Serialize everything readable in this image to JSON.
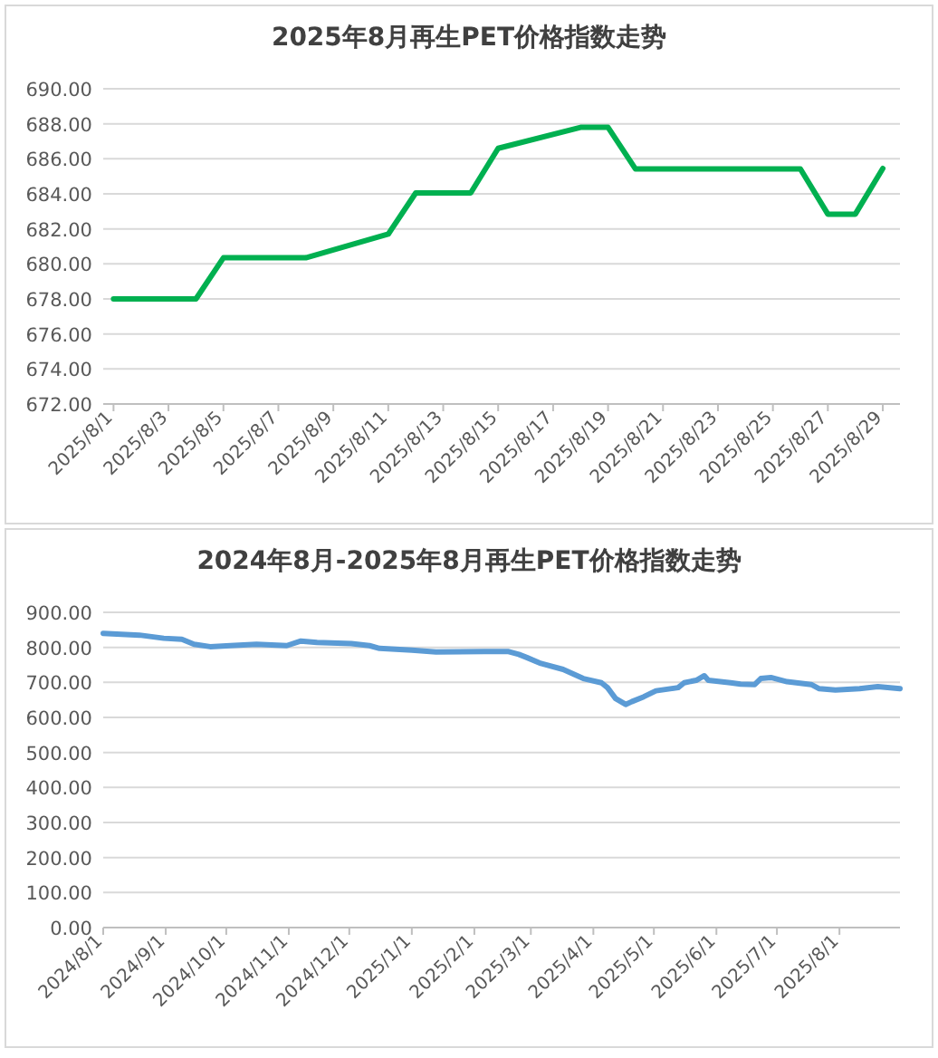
{
  "chart_data": [
    {
      "type": "line",
      "title": "2025年8月再生PET价格指数走势",
      "grid": "y",
      "line_style": "solid",
      "x": [
        "2025-08-01",
        "2025-08-04",
        "2025-08-05",
        "2025-08-06",
        "2025-08-07",
        "2025-08-08",
        "2025-08-11",
        "2025-08-12",
        "2025-08-13",
        "2025-08-14",
        "2025-08-15",
        "2025-08-18",
        "2025-08-19",
        "2025-08-20",
        "2025-08-21",
        "2025-08-22",
        "2025-08-25",
        "2025-08-26",
        "2025-08-27",
        "2025-08-28",
        "2025-08-29"
      ],
      "series": [
        {
          "color": "#00b050",
          "values": [
            678.0,
            678.0,
            680.35,
            680.35,
            680.35,
            680.35,
            681.7,
            684.05,
            684.05,
            684.05,
            686.6,
            687.8,
            687.8,
            685.42,
            685.42,
            685.42,
            685.42,
            685.42,
            682.84,
            682.84,
            685.45
          ]
        }
      ],
      "xlim": [
        "2025-07-31T15:00",
        "2025-08-29T15:00"
      ],
      "xticks": [
        {
          "value": "2025-08-01",
          "label": "2025/8/1"
        },
        {
          "value": "2025-08-03",
          "label": "2025/8/3"
        },
        {
          "value": "2025-08-05",
          "label": "2025/8/5"
        },
        {
          "value": "2025-08-07",
          "label": "2025/8/7"
        },
        {
          "value": "2025-08-09",
          "label": "2025/8/9"
        },
        {
          "value": "2025-08-11",
          "label": "2025/8/11"
        },
        {
          "value": "2025-08-13",
          "label": "2025/8/13"
        },
        {
          "value": "2025-08-15",
          "label": "2025/8/15"
        },
        {
          "value": "2025-08-17",
          "label": "2025/8/17"
        },
        {
          "value": "2025-08-19",
          "label": "2025/8/19"
        },
        {
          "value": "2025-08-21",
          "label": "2025/8/21"
        },
        {
          "value": "2025-08-23",
          "label": "2025/8/23"
        },
        {
          "value": "2025-08-25",
          "label": "2025/8/25"
        },
        {
          "value": "2025-08-27",
          "label": "2025/8/27"
        },
        {
          "value": "2025-08-29",
          "label": "2025/8/29"
        }
      ],
      "ylim": [
        672,
        690
      ],
      "yticks": [
        {
          "value": 672,
          "label": "672.00"
        },
        {
          "value": 674,
          "label": "674.00"
        },
        {
          "value": 676,
          "label": "676.00"
        },
        {
          "value": 678,
          "label": "678.00"
        },
        {
          "value": 680,
          "label": "680.00"
        },
        {
          "value": 682,
          "label": "682.00"
        },
        {
          "value": 684,
          "label": "684.00"
        },
        {
          "value": 686,
          "label": "686.00"
        },
        {
          "value": 688,
          "label": "688.00"
        },
        {
          "value": 690,
          "label": "690.00"
        }
      ]
    },
    {
      "type": "line",
      "title": "2024年8月-2025年8月再生PET价格指数走势",
      "grid": "y",
      "line_style": "solid",
      "x": [
        "2024-08-01",
        "2024-08-19",
        "2024-08-31",
        "2024-09-09",
        "2024-09-15",
        "2024-09-23",
        "2024-10-03",
        "2024-10-16",
        "2024-10-31",
        "2024-11-07",
        "2024-11-15",
        "2024-12-02",
        "2024-12-11",
        "2024-12-16",
        "2025-01-01",
        "2025-01-13",
        "2025-02-06",
        "2025-02-18",
        "2025-02-23",
        "2025-02-27",
        "2025-03-06",
        "2025-03-17",
        "2025-03-27",
        "2025-04-05",
        "2025-04-08",
        "2025-04-12",
        "2025-04-17",
        "2025-04-20",
        "2025-04-26",
        "2025-05-02",
        "2025-05-13",
        "2025-05-16",
        "2025-05-22",
        "2025-05-26",
        "2025-05-28",
        "2025-06-08",
        "2025-06-13",
        "2025-06-20",
        "2025-06-23",
        "2025-06-28",
        "2025-07-06",
        "2025-07-18",
        "2025-07-22",
        "2025-07-30",
        "2025-08-11",
        "2025-08-20",
        "2025-08-31"
      ],
      "series": [
        {
          "color": "#5b9bd5",
          "values": [
            840,
            835,
            826,
            823,
            809,
            802,
            805,
            809,
            805,
            818,
            814,
            811,
            805,
            797,
            792,
            787,
            788,
            788,
            780,
            771,
            754,
            737,
            711,
            699,
            685,
            654,
            637,
            645,
            659,
            676,
            685,
            699,
            706,
            719,
            706,
            699,
            695,
            694,
            711,
            714,
            702,
            694,
            682,
            678,
            682,
            688,
            682
          ]
        }
      ],
      "xlim": [
        "2024-08-01",
        "2025-08-31"
      ],
      "xticks": [
        {
          "value": "2024-08-01",
          "label": "2024/8/1"
        },
        {
          "value": "2024-09-01",
          "label": "2024/9/1"
        },
        {
          "value": "2024-10-01",
          "label": "2024/10/1"
        },
        {
          "value": "2024-11-01",
          "label": "2024/11/1"
        },
        {
          "value": "2024-12-01",
          "label": "2024/12/1"
        },
        {
          "value": "2025-01-01",
          "label": "2025/1/1"
        },
        {
          "value": "2025-02-01",
          "label": "2025/2/1"
        },
        {
          "value": "2025-03-01",
          "label": "2025/3/1"
        },
        {
          "value": "2025-04-01",
          "label": "2025/4/1"
        },
        {
          "value": "2025-05-01",
          "label": "2025/5/1"
        },
        {
          "value": "2025-06-01",
          "label": "2025/6/1"
        },
        {
          "value": "2025-07-01",
          "label": "2025/7/1"
        },
        {
          "value": "2025-08-01",
          "label": "2025/8/1"
        }
      ],
      "ylim": [
        0,
        900
      ],
      "yticks": [
        {
          "value": 0,
          "label": "0.00"
        },
        {
          "value": 100,
          "label": "100.00"
        },
        {
          "value": 200,
          "label": "200.00"
        },
        {
          "value": 300,
          "label": "300.00"
        },
        {
          "value": 400,
          "label": "400.00"
        },
        {
          "value": 500,
          "label": "500.00"
        },
        {
          "value": 600,
          "label": "600.00"
        },
        {
          "value": 700,
          "label": "700.00"
        },
        {
          "value": 800,
          "label": "800.00"
        },
        {
          "value": 900,
          "label": "900.00"
        }
      ]
    }
  ]
}
